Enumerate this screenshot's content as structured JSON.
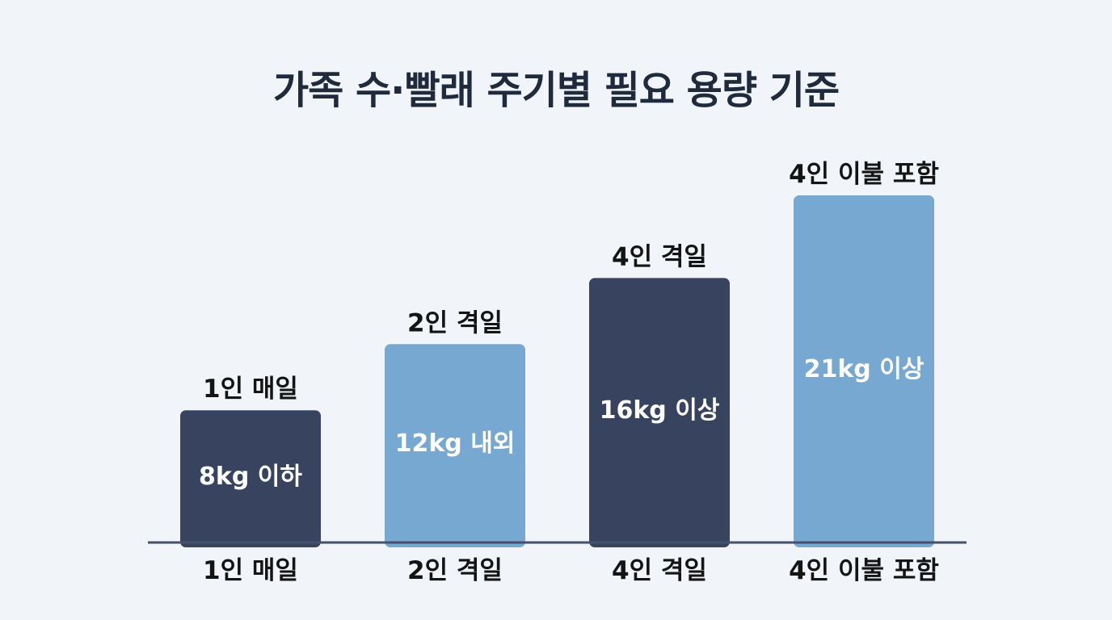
{
  "chart_data": {
    "type": "bar",
    "title": "가족 수·빨래 주기별 필요 용량 기준",
    "xlabel": "",
    "ylabel": "",
    "categories": [
      "1인 매일",
      "2인 격일",
      "4인 격일",
      "4인 이불 포함"
    ],
    "values": [
      8,
      12,
      16,
      21
    ],
    "value_labels": [
      "8kg 이하",
      "12kg 내외",
      "16kg 이상",
      "21kg 이상"
    ],
    "top_labels": [
      "1인 매일",
      "2인 격일",
      "4인 격일",
      "4인 이불 포함"
    ],
    "unit": "kg",
    "ylim": [
      0,
      21
    ],
    "grid": false,
    "legend": "none",
    "colors": [
      "#37435f",
      "#76a8d1",
      "#37435f",
      "#76a8d1"
    ]
  },
  "colors": {
    "background": "#f1f5f9",
    "axis": "#45506a",
    "title": "#1f2a3c",
    "label": "#141414",
    "value_text": "#ffffff"
  }
}
